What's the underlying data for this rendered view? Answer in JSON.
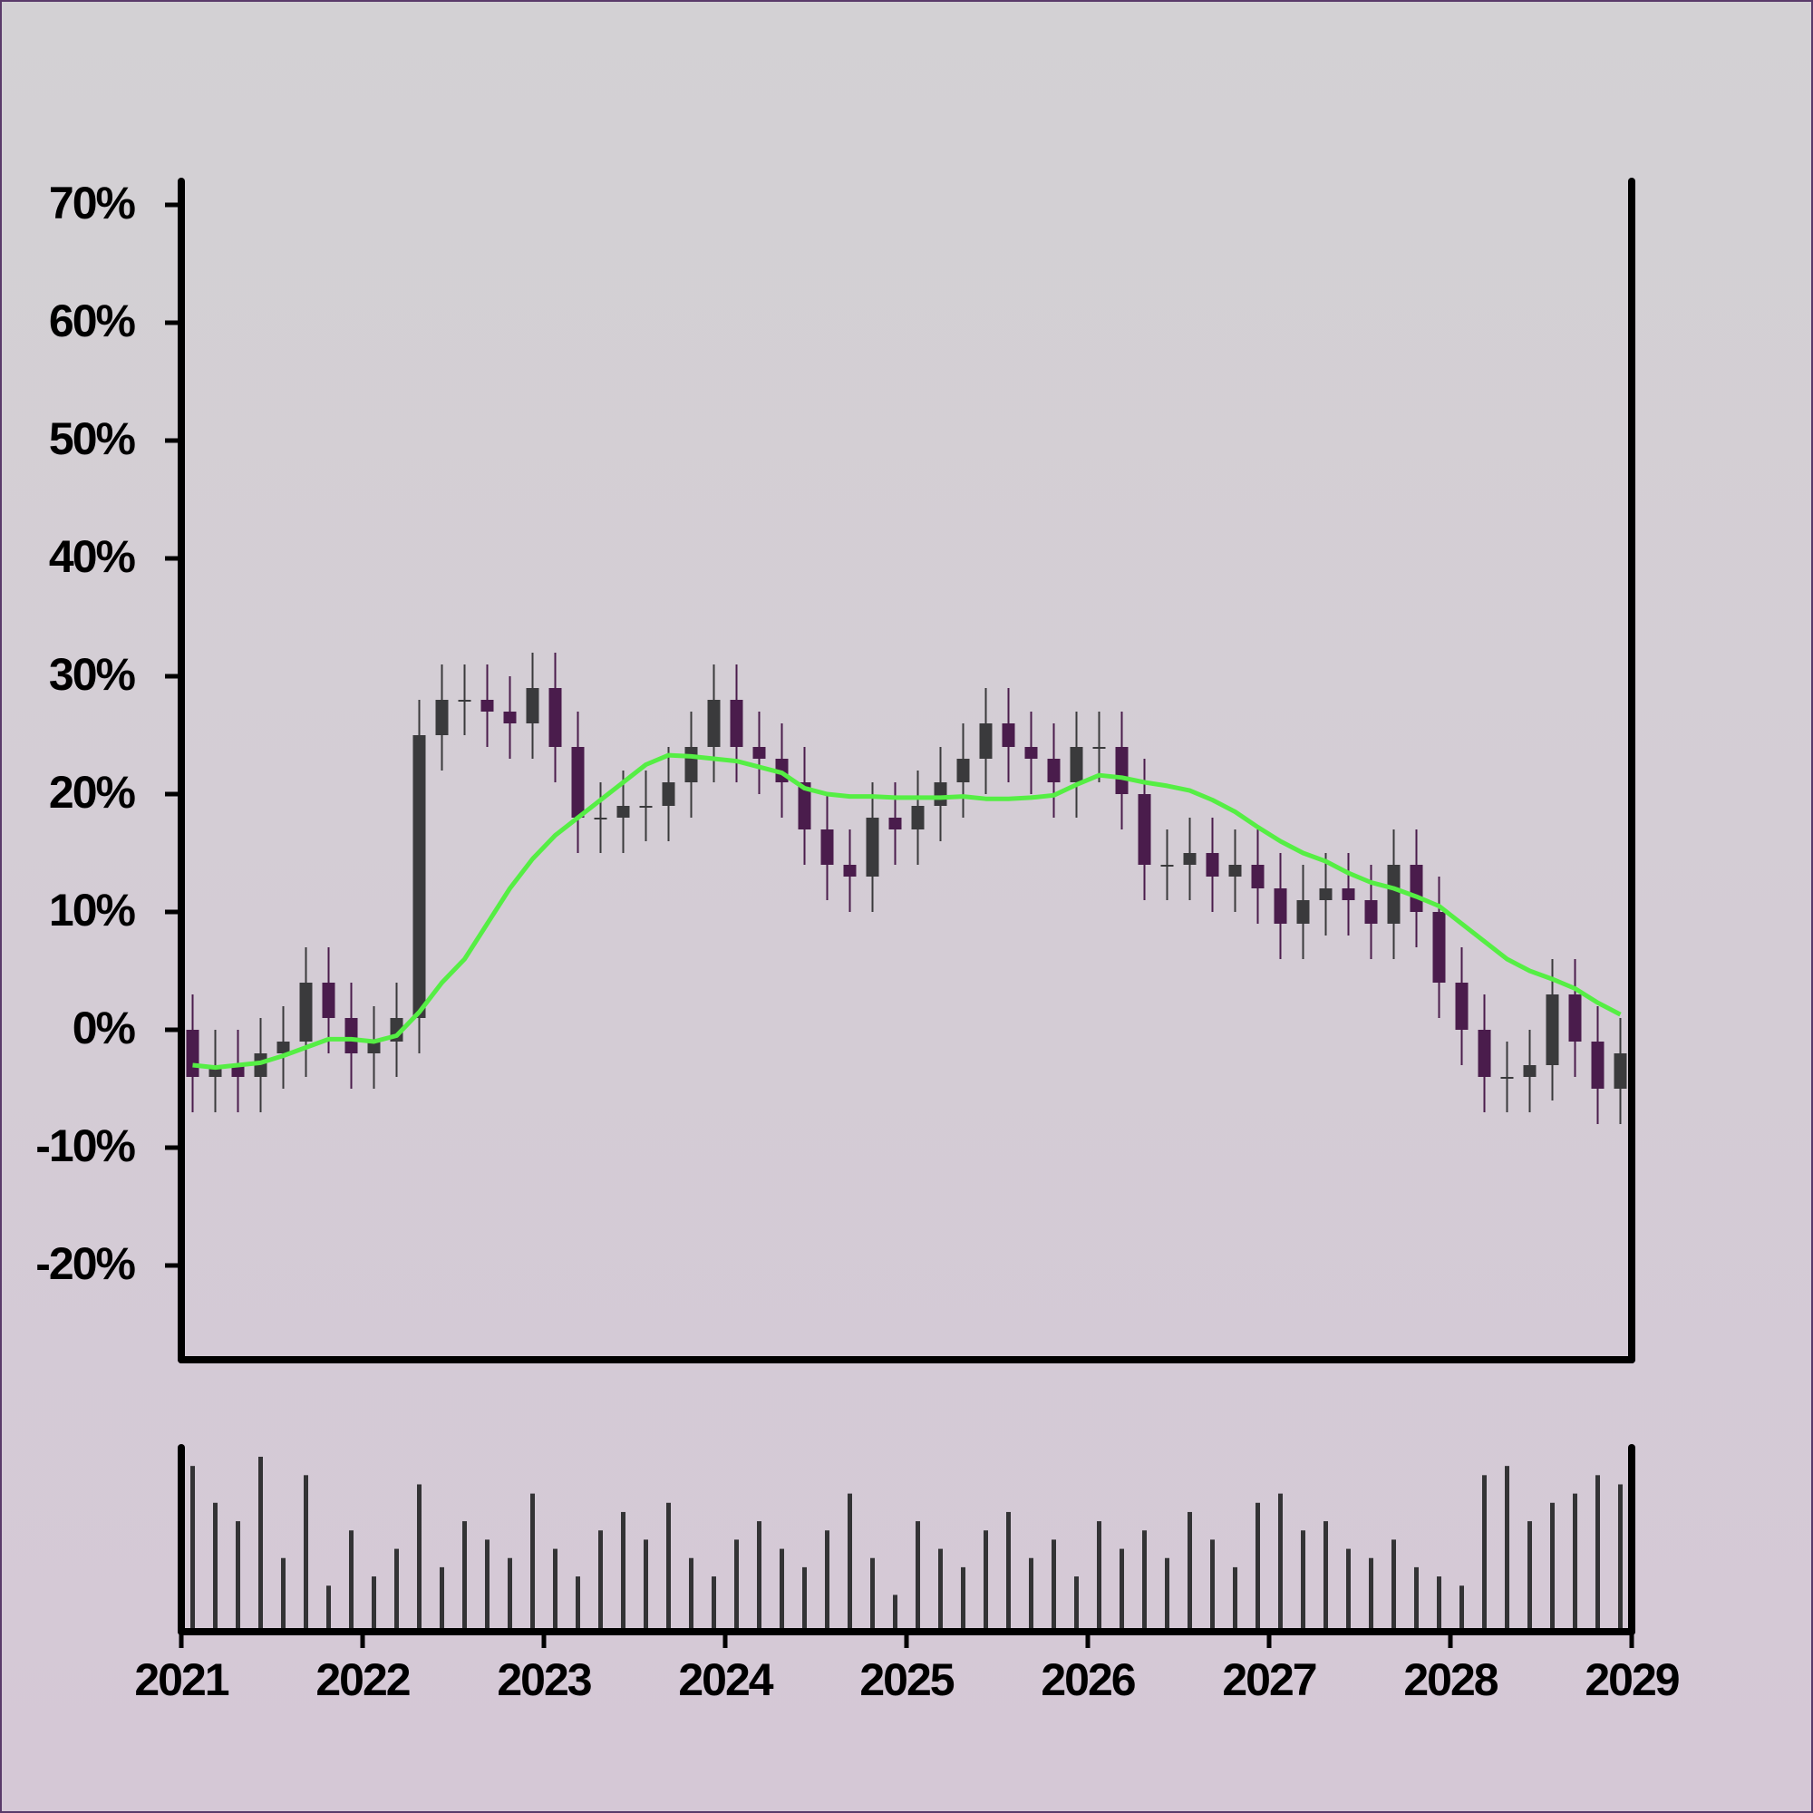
{
  "chart_data": {
    "type": "candlestick",
    "x": [
      2021.0625,
      2021.1875,
      2021.3125,
      2021.4375,
      2021.5625,
      2021.6875,
      2021.8125,
      2021.9375,
      2022.0625,
      2022.1875,
      2022.3125,
      2022.4375,
      2022.5625,
      2022.6875,
      2022.8125,
      2022.9375,
      2023.0625,
      2023.1875,
      2023.3125,
      2023.4375,
      2023.5625,
      2023.6875,
      2023.8125,
      2023.9375,
      2024.0625,
      2024.1875,
      2024.3125,
      2024.4375,
      2024.5625,
      2024.6875,
      2024.8125,
      2024.9375,
      2025.0625,
      2025.1875,
      2025.3125,
      2025.4375,
      2025.5625,
      2025.6875,
      2025.8125,
      2025.9375,
      2026.0625,
      2026.1875,
      2026.3125,
      2026.4375,
      2026.5625,
      2026.6875,
      2026.8125,
      2026.9375,
      2027.0625,
      2027.1875,
      2027.3125,
      2027.4375,
      2027.5625,
      2027.6875,
      2027.8125,
      2027.9375,
      2028.0625,
      2028.1875,
      2028.3125,
      2028.4375,
      2028.5625,
      2028.6875,
      2028.8125,
      2028.9375
    ],
    "open": [
      0,
      -4,
      -3,
      -4,
      -2,
      -1,
      4,
      1,
      -2,
      -1,
      1,
      25,
      28,
      28,
      27,
      26,
      29,
      24,
      18,
      18,
      19,
      19,
      21,
      24,
      28,
      24,
      23,
      21,
      17,
      14,
      13,
      18,
      17,
      19,
      21,
      23,
      26,
      24,
      23,
      21,
      24,
      24,
      20,
      14,
      14,
      15,
      13,
      14,
      12,
      9,
      11,
      12,
      11,
      9,
      14,
      10,
      4,
      0,
      -4,
      -4,
      -3,
      3,
      -1,
      -5
    ],
    "high": [
      3,
      0,
      0,
      1,
      2,
      7,
      7,
      4,
      2,
      4,
      28,
      31,
      31,
      31,
      30,
      32,
      32,
      27,
      21,
      22,
      22,
      24,
      27,
      31,
      31,
      27,
      26,
      24,
      20,
      17,
      21,
      21,
      22,
      24,
      26,
      29,
      29,
      27,
      26,
      27,
      27,
      27,
      23,
      17,
      18,
      18,
      17,
      17,
      15,
      14,
      15,
      15,
      14,
      17,
      17,
      13,
      7,
      3,
      -1,
      0,
      6,
      6,
      2,
      1
    ],
    "low": [
      -7,
      -7,
      -7,
      -7,
      -5,
      -4,
      -2,
      -5,
      -5,
      -4,
      -2,
      22,
      25,
      24,
      23,
      23,
      21,
      15,
      15,
      15,
      16,
      16,
      18,
      21,
      21,
      20,
      18,
      14,
      11,
      10,
      10,
      14,
      14,
      16,
      18,
      20,
      21,
      20,
      18,
      18,
      21,
      17,
      11,
      11,
      11,
      10,
      10,
      9,
      6,
      6,
      8,
      8,
      6,
      6,
      7,
      1,
      -3,
      -7,
      -7,
      -7,
      -6,
      -4,
      -8,
      -8
    ],
    "close": [
      -4,
      -3,
      -4,
      -2,
      -1,
      4,
      1,
      -2,
      -1,
      1,
      25,
      28,
      28,
      27,
      26,
      29,
      24,
      18,
      18,
      19,
      19,
      21,
      24,
      28,
      24,
      23,
      21,
      17,
      14,
      13,
      18,
      17,
      19,
      21,
      23,
      26,
      24,
      23,
      21,
      24,
      24,
      20,
      14,
      14,
      15,
      13,
      14,
      12,
      9,
      11,
      12,
      11,
      9,
      14,
      10,
      4,
      0,
      -4,
      -4,
      -3,
      3,
      -1,
      -5,
      -2
    ],
    "up_color": "#3a3a3c",
    "down_color": "#4a1c4c",
    "moving_average": {
      "color": "#55ee44",
      "values": [
        -3,
        -3.2,
        -3,
        -2.8,
        -2.2,
        -1.5,
        -0.8,
        -0.8,
        -1,
        -0.5,
        1.5,
        4,
        6,
        9,
        12,
        14.5,
        16.5,
        18,
        19.5,
        21,
        22.5,
        23.3,
        23.2,
        23,
        22.8,
        22.3,
        21.8,
        20.5,
        20,
        19.8,
        19.8,
        19.7,
        19.7,
        19.7,
        19.8,
        19.6,
        19.6,
        19.7,
        19.9,
        20.8,
        21.6,
        21.4,
        21,
        20.7,
        20.3,
        19.5,
        18.5,
        17.2,
        16,
        15,
        14.3,
        13.3,
        12.5,
        12,
        11.3,
        10.5,
        9,
        7.5,
        6,
        5,
        4.3,
        3.5,
        2.3,
        1.3
      ]
    },
    "volume": {
      "color": "#333335",
      "values": [
        90,
        70,
        60,
        95,
        40,
        85,
        25,
        55,
        30,
        45,
        80,
        35,
        60,
        50,
        40,
        75,
        45,
        30,
        55,
        65,
        50,
        70,
        40,
        30,
        50,
        60,
        45,
        35,
        55,
        75,
        40,
        20,
        60,
        45,
        35,
        55,
        65,
        40,
        50,
        30,
        60,
        45,
        55,
        40,
        65,
        50,
        35,
        70,
        75,
        55,
        60,
        45,
        40,
        50,
        35,
        30,
        25,
        85,
        90,
        60,
        70,
        75,
        85,
        80
      ]
    },
    "xlim": [
      2021,
      2029
    ],
    "xticks": [
      2021,
      2022,
      2023,
      2024,
      2025,
      2026,
      2027,
      2028,
      2029
    ],
    "ylim": [
      -28,
      72
    ],
    "yticks": [
      {
        "value": -20,
        "label": "-20%"
      },
      {
        "value": -10,
        "label": "-10%"
      },
      {
        "value": 0,
        "label": "0%"
      },
      {
        "value": 10,
        "label": "10%"
      },
      {
        "value": 20,
        "label": "20%"
      },
      {
        "value": 30,
        "label": "30%"
      },
      {
        "value": 40,
        "label": "40%"
      },
      {
        "value": 50,
        "label": "50%"
      },
      {
        "value": 60,
        "label": "60%"
      },
      {
        "value": 70,
        "label": "70%"
      }
    ]
  }
}
